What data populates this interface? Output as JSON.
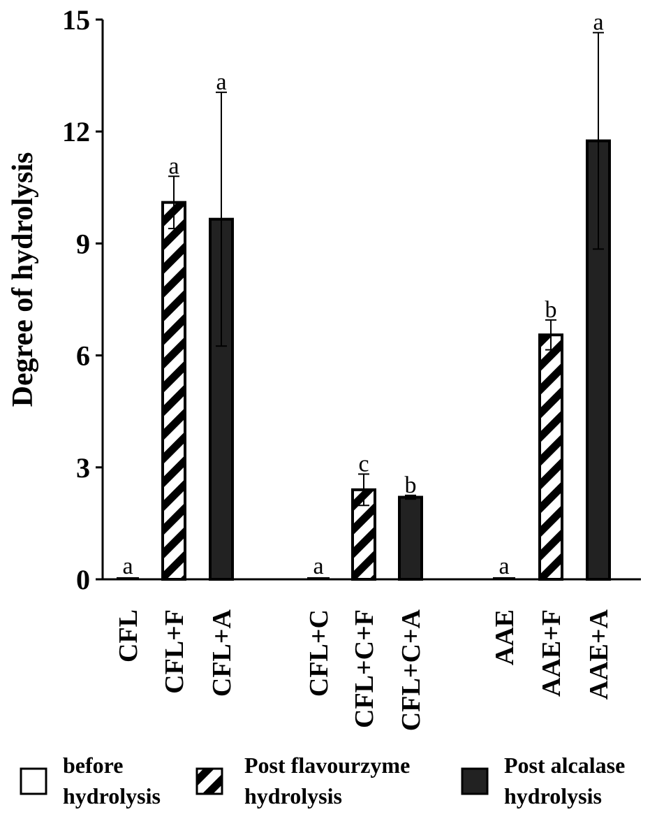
{
  "chart_data": {
    "type": "bar",
    "ylabel": "Degree of hydrolysis",
    "xlabel": "",
    "ylim": [
      0,
      15
    ],
    "yticks": [
      "0",
      "3",
      "6",
      "9",
      "12",
      "15"
    ],
    "grid": false,
    "legend_position": "bottom",
    "categories": [
      "CFL",
      "CFL+F",
      "CFL+A",
      "CFL+C",
      "CFL+C+F",
      "CFL+C+A",
      "AAE",
      "AAE+F",
      "AAE+A"
    ],
    "groups": [
      [
        "CFL",
        "CFL+F",
        "CFL+A"
      ],
      [
        "CFL+C",
        "CFL+C+F",
        "CFL+C+A"
      ],
      [
        "AAE",
        "AAE+F",
        "AAE+A"
      ]
    ],
    "bars": [
      {
        "label": "CFL",
        "value": 0,
        "error": 0,
        "series": "before",
        "letter": "a"
      },
      {
        "label": "CFL+F",
        "value": 10.1,
        "error": 0.7,
        "series": "flavourzyme",
        "letter": "a"
      },
      {
        "label": "CFL+A",
        "value": 9.65,
        "error": 3.4,
        "series": "alcalase",
        "letter": "a"
      },
      {
        "label": "CFL+C",
        "value": 0,
        "error": 0,
        "series": "before",
        "letter": "a"
      },
      {
        "label": "CFL+C+F",
        "value": 2.4,
        "error": 0.42,
        "series": "flavourzyme",
        "letter": "c"
      },
      {
        "label": "CFL+C+A",
        "value": 2.2,
        "error": 0.05,
        "series": "alcalase",
        "letter": "b"
      },
      {
        "label": "AAE",
        "value": 0,
        "error": 0,
        "series": "before",
        "letter": "a"
      },
      {
        "label": "AAE+F",
        "value": 6.55,
        "error": 0.4,
        "series": "flavourzyme",
        "letter": "b"
      },
      {
        "label": "AAE+A",
        "value": 11.75,
        "error": 2.9,
        "series": "alcalase",
        "letter": "a"
      }
    ],
    "legend": [
      {
        "key": "before",
        "line1": "before",
        "line2": "hydrolysis"
      },
      {
        "key": "flavourzyme",
        "line1": "Post flavourzyme",
        "line2": "hydrolysis"
      },
      {
        "key": "alcalase",
        "line1": "Post alcalase",
        "line2": "hydrolysis"
      }
    ],
    "colors": {
      "bar_fill_dark": "#222222",
      "stroke": "#000000",
      "background": "#ffffff"
    }
  }
}
